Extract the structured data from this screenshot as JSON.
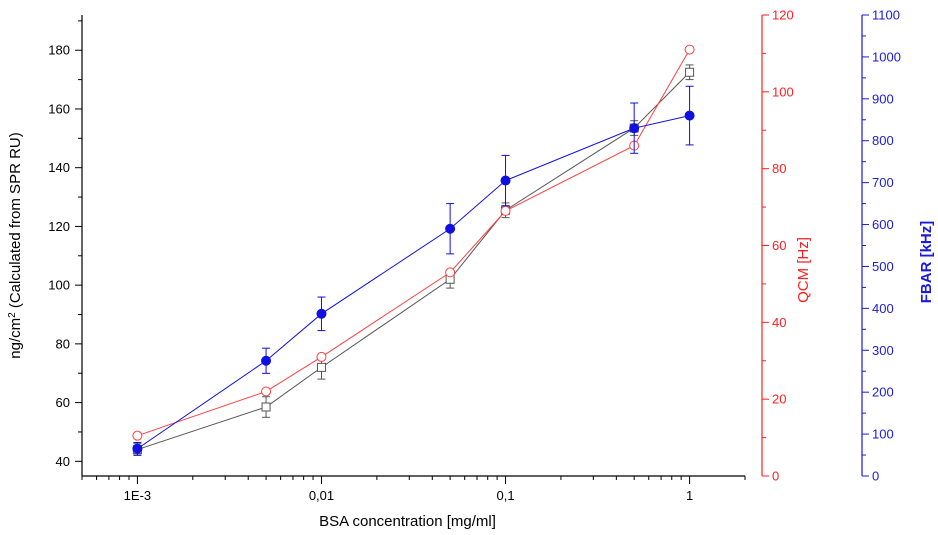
{
  "chart_data": {
    "type": "line",
    "xlabel": "BSA concentration [mg/ml]",
    "x_scale": "log",
    "xlim": [
      0.0005,
      2
    ],
    "x_ticks": [
      {
        "value": 0.001,
        "label": "1E-3"
      },
      {
        "value": 0.01,
        "label": "0,01"
      },
      {
        "value": 0.1,
        "label": "0,1"
      },
      {
        "value": 1,
        "label": "1"
      }
    ],
    "y_axes": [
      {
        "id": "spr",
        "label_prefix": "ng/cm",
        "label_sup": "2",
        "label_suffix": " (Calculated from SPR RU)",
        "color": "#000000",
        "ylim": [
          35,
          192
        ],
        "ticks": [
          40,
          60,
          80,
          100,
          120,
          140,
          160,
          180
        ],
        "position": "left"
      },
      {
        "id": "qcm",
        "label": "QCM [Hz]",
        "color": "#ff2020",
        "ylim": [
          0,
          120
        ],
        "ticks": [
          0,
          20,
          40,
          60,
          80,
          100,
          120
        ],
        "position": "right"
      },
      {
        "id": "fbar",
        "label": "FBAR [kHz]",
        "color": "#1a1adc",
        "ylim": [
          0,
          1100
        ],
        "ticks": [
          0,
          100,
          200,
          300,
          400,
          500,
          600,
          700,
          800,
          900,
          1000,
          1100
        ],
        "position": "far-right"
      }
    ],
    "series": [
      {
        "axis": "spr",
        "marker": "open-square",
        "color": "#555555",
        "x": [
          0.001,
          0.005,
          0.01,
          0.05,
          0.1,
          0.5,
          1
        ],
        "y": [
          44,
          58.5,
          72,
          102,
          125.5,
          153.5,
          172.5
        ],
        "err": [
          2,
          3.5,
          4,
          3,
          2.5,
          2.5,
          2.5
        ]
      },
      {
        "axis": "qcm",
        "marker": "open-circle",
        "color": "#ff4040",
        "x": [
          0.001,
          0.005,
          0.01,
          0.05,
          0.1,
          0.5,
          1
        ],
        "y": [
          10.5,
          22,
          31,
          53,
          69,
          86,
          111
        ]
      },
      {
        "axis": "fbar",
        "marker": "filled-circle",
        "color": "#1010e0",
        "x": [
          0.001,
          0.005,
          0.01,
          0.05,
          0.1,
          0.5,
          1
        ],
        "y": [
          65,
          275,
          387,
          590,
          705,
          830,
          860
        ],
        "err": [
          15,
          30,
          40,
          60,
          60,
          60,
          70
        ]
      }
    ]
  }
}
